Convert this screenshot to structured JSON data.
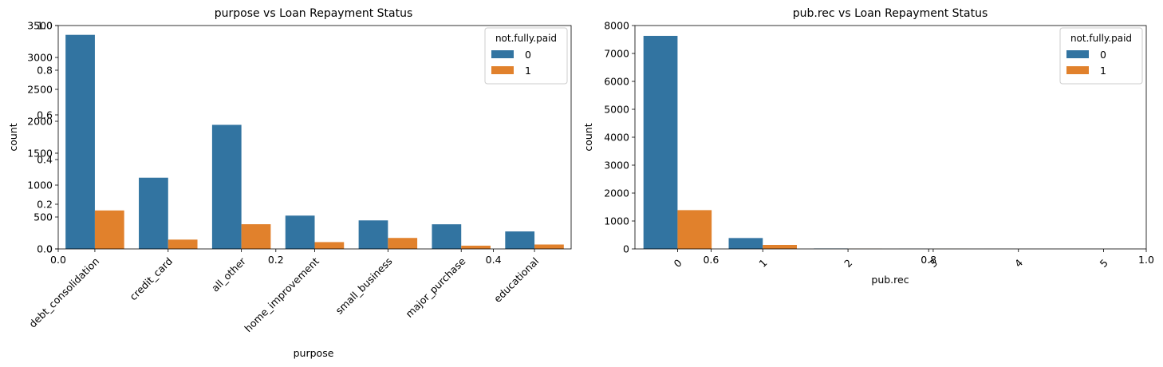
{
  "colors": {
    "class0": "#3274a1",
    "class1": "#e1812c"
  },
  "overlay_ticks": {
    "y": [
      "0.0",
      "0.2",
      "0.4",
      "0.6",
      "0.8",
      "1.0"
    ],
    "x": [
      "0.0",
      "0.2",
      "0.4",
      "0.6",
      "0.8",
      "1.0"
    ]
  },
  "chart_data": [
    {
      "type": "bar",
      "title": "purpose vs Loan Repayment Status",
      "xlabel": "purpose",
      "ylabel": "count",
      "ylim": [
        0,
        3500
      ],
      "yticks": [
        "0",
        "500",
        "1000",
        "1500",
        "2000",
        "2500",
        "3000",
        "3500"
      ],
      "categories": [
        "debt_consolidation",
        "credit_card",
        "all_other",
        "home_improvement",
        "small_business",
        "major_purchase",
        "educational"
      ],
      "legend_title": "not.fully.paid",
      "legend_position": "upper right",
      "series": [
        {
          "name": "0",
          "values": [
            3354,
            1116,
            1944,
            522,
            447,
            386,
            274
          ]
        },
        {
          "name": "1",
          "values": [
            603,
            146,
            387,
            107,
            172,
            51,
            69
          ]
        }
      ]
    },
    {
      "type": "bar",
      "title": "pub.rec vs Loan Repayment Status",
      "xlabel": "pub.rec",
      "ylabel": "count",
      "ylim": [
        0,
        8000
      ],
      "yticks": [
        "0",
        "1000",
        "2000",
        "3000",
        "4000",
        "5000",
        "6000",
        "7000",
        "8000"
      ],
      "categories": [
        "0",
        "1",
        "2",
        "3",
        "4",
        "5"
      ],
      "legend_title": "not.fully.paid",
      "legend_position": "upper right",
      "series": [
        {
          "name": "0",
          "values": [
            7630,
            390,
            15,
            3,
            1,
            1
          ]
        },
        {
          "name": "1",
          "values": [
            1389,
            143,
            4,
            2,
            0,
            0
          ]
        }
      ]
    }
  ]
}
